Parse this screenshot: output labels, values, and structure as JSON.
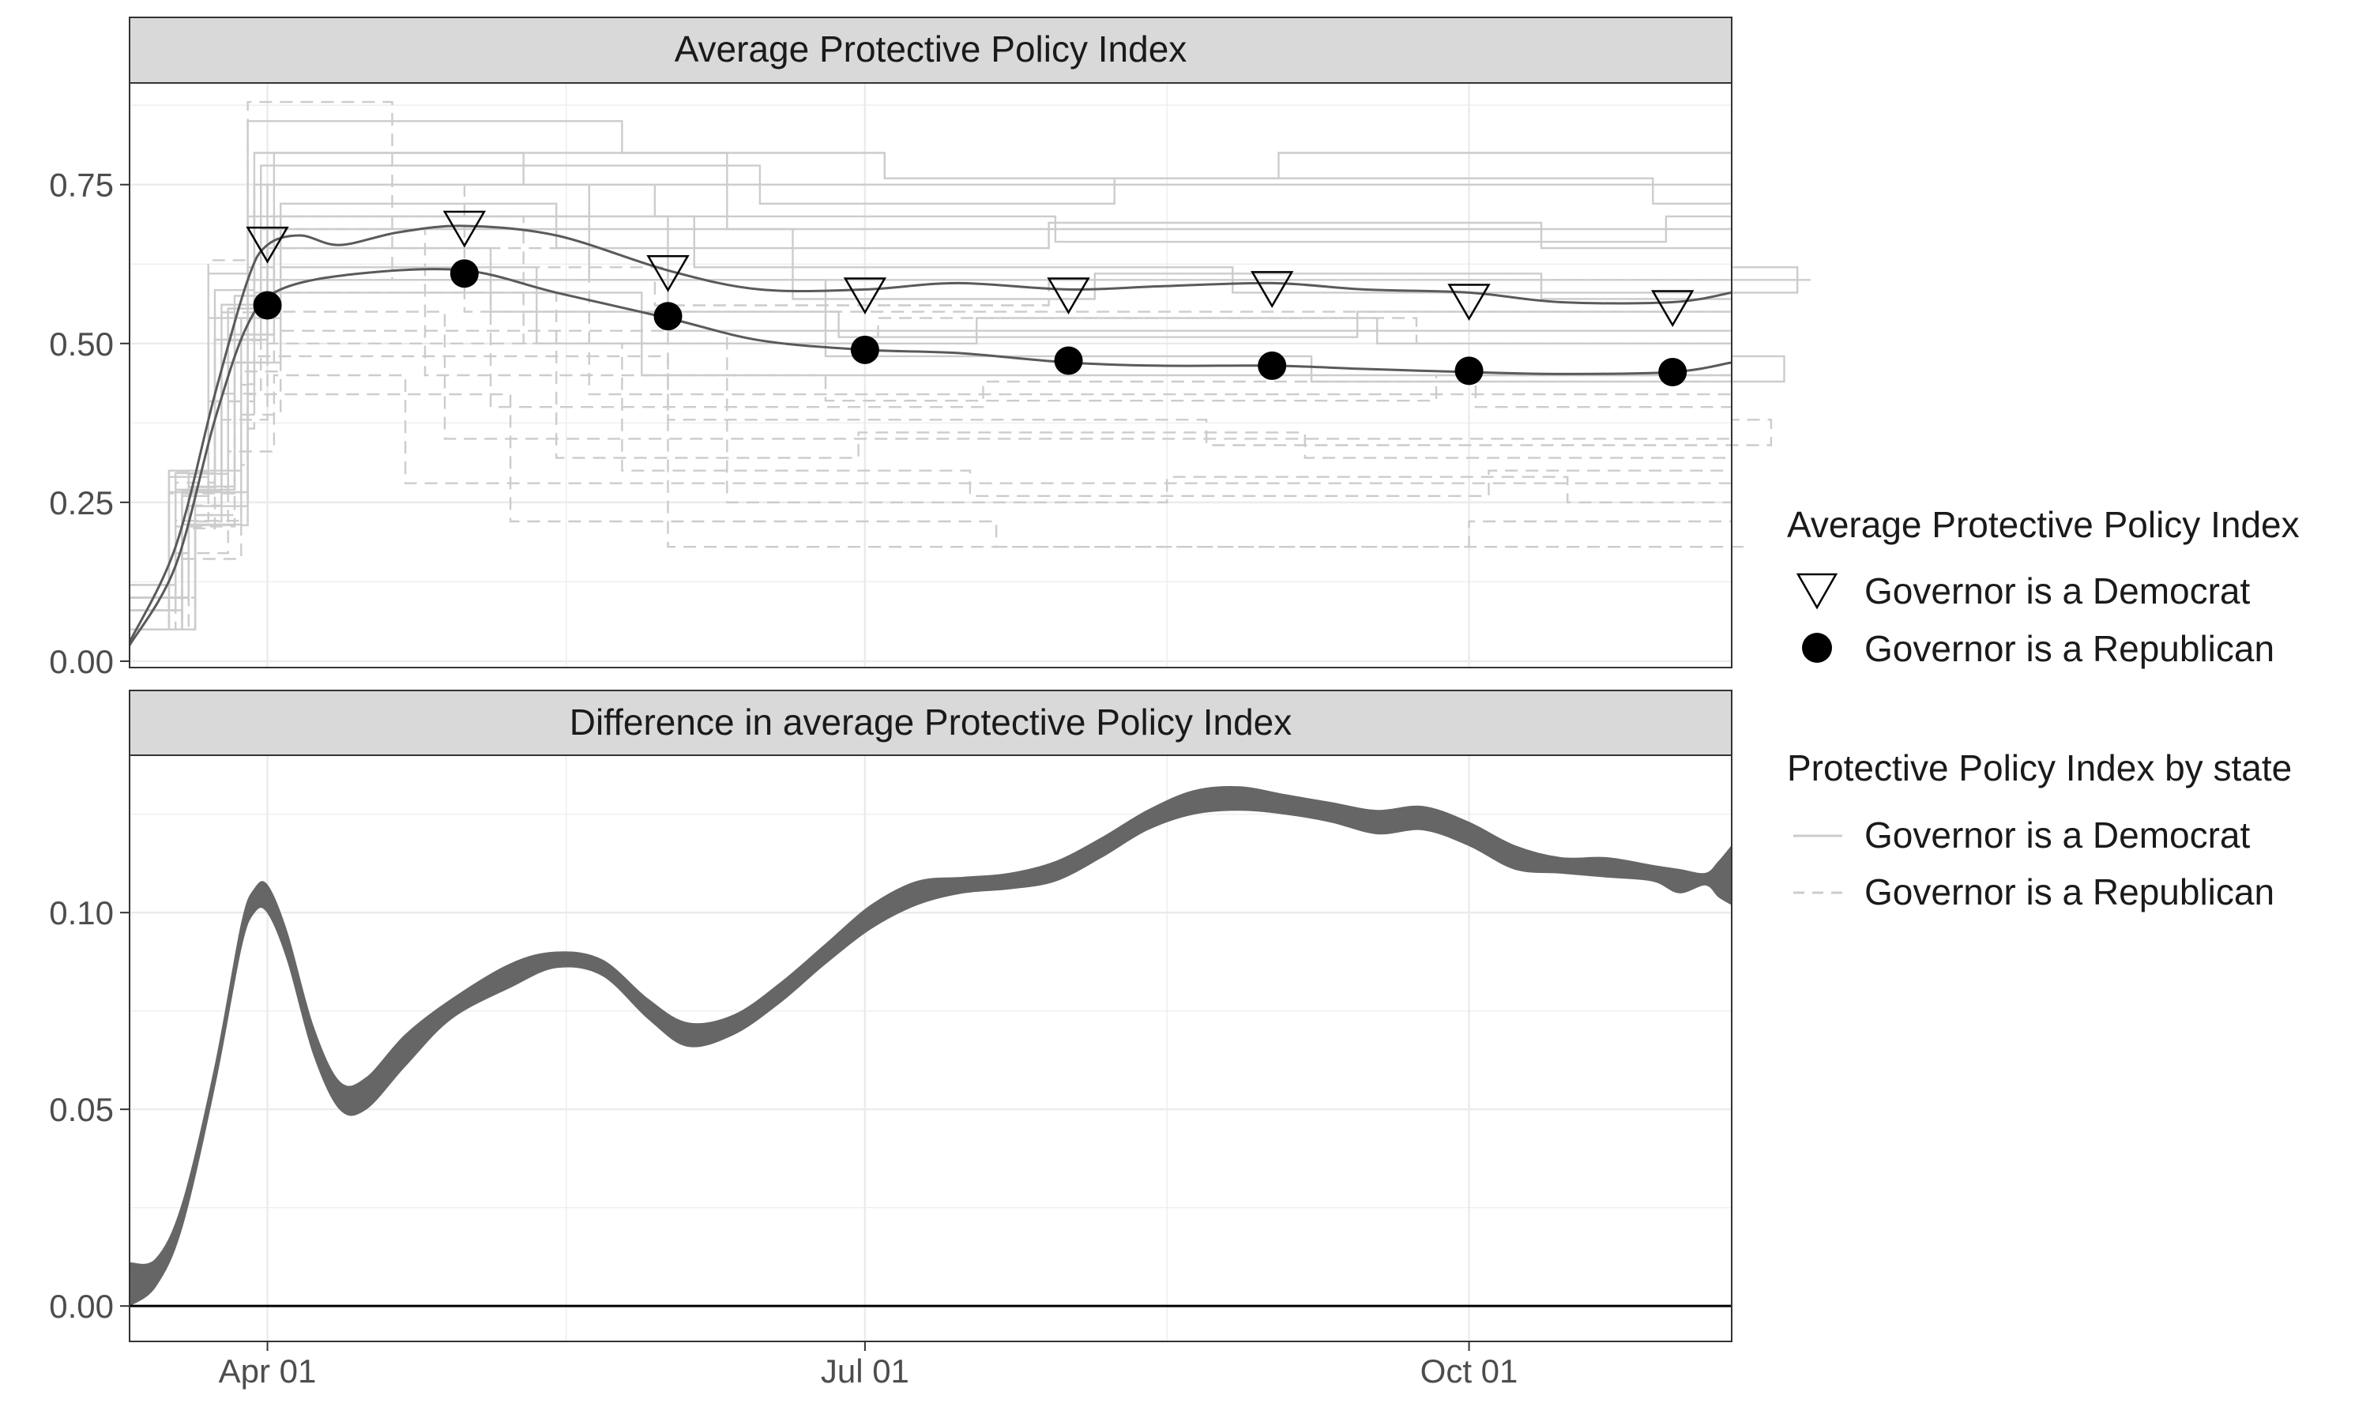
{
  "colors": {
    "strip_fill": "#d9d9d9",
    "panel_border": "#333333",
    "grid_major": "#ebebeb",
    "state_line": "#cccccc",
    "avg_line": "#5a5a5a",
    "ribbon": "#666666",
    "text": "#1a1a1a",
    "axis_text": "#4d4d4d"
  },
  "legend": {
    "avg_title": "Average Protective Policy Index",
    "avg_items": [
      {
        "label": "Governor is a Democrat",
        "shape": "open-down-triangle-icon"
      },
      {
        "label": "Governor is a Republican",
        "shape": "filled-circle-icon"
      }
    ],
    "state_title": "Protective Policy Index by state",
    "state_items": [
      {
        "label": "Governor is a Democrat",
        "linetype": "solid"
      },
      {
        "label": "Governor is a Republican",
        "linetype": "dashed"
      }
    ]
  },
  "chart_data": [
    {
      "type": "line",
      "title": "Average Protective Policy Index",
      "x_axis": {
        "type": "date",
        "range": [
          "2020-03-11",
          "2020-11-10"
        ],
        "tick_labels": [
          "Apr 01",
          "Jul 01",
          "Oct 01"
        ],
        "tick_dates": [
          "2020-04-01",
          "2020-07-01",
          "2020-10-01"
        ]
      },
      "y_axis": {
        "range": [
          -0.01,
          0.91
        ],
        "ticks": [
          0.0,
          0.25,
          0.5,
          0.75
        ],
        "tick_labels": [
          "0.00",
          "0.25",
          "0.50",
          "0.75"
        ]
      },
      "grid": true,
      "legend_position": "right",
      "series": [
        {
          "name": "Governor is a Democrat",
          "marker": "open-triangle-down",
          "smooth": [
            [
              "2020-03-11",
              0.03
            ],
            [
              "2020-03-18",
              0.18
            ],
            [
              "2020-03-24",
              0.42
            ],
            [
              "2020-03-29",
              0.6
            ],
            [
              "2020-04-01",
              0.655
            ],
            [
              "2020-04-06",
              0.67
            ],
            [
              "2020-04-12",
              0.655
            ],
            [
              "2020-04-21",
              0.675
            ],
            [
              "2020-05-01",
              0.685
            ],
            [
              "2020-05-15",
              0.67
            ],
            [
              "2020-06-01",
              0.615
            ],
            [
              "2020-06-15",
              0.585
            ],
            [
              "2020-07-01",
              0.585
            ],
            [
              "2020-07-15",
              0.595
            ],
            [
              "2020-08-01",
              0.585
            ],
            [
              "2020-08-15",
              0.59
            ],
            [
              "2020-09-01",
              0.595
            ],
            [
              "2020-09-15",
              0.585
            ],
            [
              "2020-10-01",
              0.58
            ],
            [
              "2020-10-15",
              0.565
            ],
            [
              "2020-11-01",
              0.565
            ],
            [
              "2020-11-10",
              0.58
            ]
          ],
          "points": [
            [
              "2020-04-01",
              0.655
            ],
            [
              "2020-05-01",
              0.68
            ],
            [
              "2020-06-01",
              0.61
            ],
            [
              "2020-07-01",
              0.575
            ],
            [
              "2020-08-01",
              0.575
            ],
            [
              "2020-09-01",
              0.585
            ],
            [
              "2020-10-01",
              0.565
            ],
            [
              "2020-11-01",
              0.555
            ]
          ]
        },
        {
          "name": "Governor is a Republican",
          "marker": "filled-circle",
          "smooth": [
            [
              "2020-03-11",
              0.025
            ],
            [
              "2020-03-18",
              0.15
            ],
            [
              "2020-03-24",
              0.38
            ],
            [
              "2020-03-29",
              0.53
            ],
            [
              "2020-04-03",
              0.585
            ],
            [
              "2020-04-15",
              0.61
            ],
            [
              "2020-05-01",
              0.615
            ],
            [
              "2020-05-15",
              0.58
            ],
            [
              "2020-06-01",
              0.54
            ],
            [
              "2020-06-15",
              0.505
            ],
            [
              "2020-07-01",
              0.49
            ],
            [
              "2020-07-15",
              0.485
            ],
            [
              "2020-08-01",
              0.47
            ],
            [
              "2020-08-15",
              0.465
            ],
            [
              "2020-09-01",
              0.465
            ],
            [
              "2020-09-15",
              0.46
            ],
            [
              "2020-10-01",
              0.455
            ],
            [
              "2020-10-15",
              0.452
            ],
            [
              "2020-11-01",
              0.455
            ],
            [
              "2020-11-10",
              0.47
            ]
          ],
          "points": [
            [
              "2020-04-01",
              0.56
            ],
            [
              "2020-05-01",
              0.61
            ],
            [
              "2020-06-01",
              0.543
            ],
            [
              "2020-07-01",
              0.49
            ],
            [
              "2020-08-01",
              0.473
            ],
            [
              "2020-09-01",
              0.465
            ],
            [
              "2020-10-01",
              0.457
            ],
            [
              "2020-11-01",
              0.455
            ]
          ]
        }
      ],
      "state_series": {
        "Governor is a Democrat": [
          {
            "level": 0.8,
            "start": 0.05,
            "peak": 0.85,
            "peak_until": "2020-05-25"
          },
          {
            "level": 0.75,
            "start": 0.08,
            "peak": 0.8,
            "peak_until": "2020-05-10"
          },
          {
            "level": 0.72,
            "start": 0.05,
            "peak": 0.78,
            "peak_until": "2020-06-15"
          },
          {
            "level": 0.7,
            "start": 0.1,
            "peak": 0.75,
            "peak_until": "2020-05-30"
          },
          {
            "level": 0.68,
            "start": 0.05,
            "peak": 0.8,
            "peak_until": "2020-06-10"
          },
          {
            "level": 0.65,
            "start": 0.12,
            "peak": 0.72,
            "peak_until": "2020-05-15"
          },
          {
            "level": 0.62,
            "start": 0.08,
            "peak": 0.7,
            "peak_until": "2020-06-05"
          },
          {
            "level": 0.6,
            "start": 0.05,
            "peak": 0.75,
            "peak_until": "2020-05-20"
          },
          {
            "level": 0.57,
            "start": 0.1,
            "peak": 0.68,
            "peak_until": "2020-06-20"
          },
          {
            "level": 0.55,
            "start": 0.05,
            "peak": 0.65,
            "peak_until": "2020-05-05"
          },
          {
            "level": 0.52,
            "start": 0.08,
            "peak": 0.7,
            "peak_until": "2020-06-01"
          },
          {
            "level": 0.5,
            "start": 0.12,
            "peak": 0.62,
            "peak_until": "2020-05-12"
          },
          {
            "level": 0.48,
            "start": 0.05,
            "peak": 0.6,
            "peak_until": "2020-06-25"
          },
          {
            "level": 0.45,
            "start": 0.1,
            "peak": 0.58,
            "peak_until": "2020-05-28"
          }
        ],
        "Governor is a Republican": [
          {
            "level": 0.6,
            "start": 0.05,
            "peak": 0.88,
            "peak_until": "2020-04-20"
          },
          {
            "level": 0.55,
            "start": 0.08,
            "peak": 0.75,
            "peak_until": "2020-05-01"
          },
          {
            "level": 0.5,
            "start": 0.05,
            "peak": 0.7,
            "peak_until": "2020-05-10"
          },
          {
            "level": 0.45,
            "start": 0.1,
            "peak": 0.68,
            "peak_until": "2020-04-25"
          },
          {
            "level": 0.42,
            "start": 0.05,
            "peak": 0.65,
            "peak_until": "2020-05-20"
          },
          {
            "level": 0.4,
            "start": 0.12,
            "peak": 0.6,
            "peak_until": "2020-05-05"
          },
          {
            "level": 0.38,
            "start": 0.05,
            "peak": 0.62,
            "peak_until": "2020-06-01"
          },
          {
            "level": 0.35,
            "start": 0.08,
            "peak": 0.55,
            "peak_until": "2020-04-28"
          },
          {
            "level": 0.32,
            "start": 0.05,
            "peak": 0.58,
            "peak_until": "2020-05-15"
          },
          {
            "level": 0.3,
            "start": 0.1,
            "peak": 0.5,
            "peak_until": "2020-05-25"
          },
          {
            "level": 0.28,
            "start": 0.05,
            "peak": 0.45,
            "peak_until": "2020-04-22"
          },
          {
            "level": 0.25,
            "start": 0.08,
            "peak": 0.52,
            "peak_until": "2020-06-10"
          },
          {
            "level": 0.22,
            "start": 0.05,
            "peak": 0.42,
            "peak_until": "2020-05-08"
          },
          {
            "level": 0.18,
            "start": 0.1,
            "peak": 0.48,
            "peak_until": "2020-06-01"
          }
        ]
      }
    },
    {
      "type": "area",
      "title": "Difference in average Protective Policy Index",
      "x_axis": {
        "type": "date",
        "range": [
          "2020-03-11",
          "2020-11-10"
        ],
        "tick_labels": [
          "Apr 01",
          "Jul 01",
          "Oct 01"
        ],
        "tick_dates": [
          "2020-04-01",
          "2020-07-01",
          "2020-10-01"
        ]
      },
      "y_axis": {
        "range": [
          -0.009,
          0.14
        ],
        "ticks": [
          0.0,
          0.05,
          0.1
        ],
        "tick_labels": [
          "0.00",
          "0.05",
          "0.10"
        ]
      },
      "grid": true,
      "hline": 0,
      "ribbon": [
        [
          "2020-03-11",
          0.0,
          0.011
        ],
        [
          "2020-03-15",
          0.005,
          0.012
        ],
        [
          "2020-03-19",
          0.02,
          0.026
        ],
        [
          "2020-03-24",
          0.056,
          0.061
        ],
        [
          "2020-03-28",
          0.091,
          0.097
        ],
        [
          "2020-03-30",
          0.1,
          0.106
        ],
        [
          "2020-04-01",
          0.1,
          0.107
        ],
        [
          "2020-04-04",
          0.088,
          0.095
        ],
        [
          "2020-04-08",
          0.064,
          0.071
        ],
        [
          "2020-04-12",
          0.05,
          0.057
        ],
        [
          "2020-04-16",
          0.05,
          0.058
        ],
        [
          "2020-04-22",
          0.061,
          0.069
        ],
        [
          "2020-04-29",
          0.073,
          0.078
        ],
        [
          "2020-05-08",
          0.081,
          0.087
        ],
        [
          "2020-05-15",
          0.086,
          0.09
        ],
        [
          "2020-05-22",
          0.084,
          0.088
        ],
        [
          "2020-05-29",
          0.073,
          0.078
        ],
        [
          "2020-06-04",
          0.066,
          0.072
        ],
        [
          "2020-06-11",
          0.069,
          0.074
        ],
        [
          "2020-06-18",
          0.077,
          0.082
        ],
        [
          "2020-06-25",
          0.087,
          0.092
        ],
        [
          "2020-07-02",
          0.096,
          0.102
        ],
        [
          "2020-07-09",
          0.102,
          0.108
        ],
        [
          "2020-07-16",
          0.105,
          0.109
        ],
        [
          "2020-07-23",
          0.106,
          0.11
        ],
        [
          "2020-07-30",
          0.108,
          0.113
        ],
        [
          "2020-08-06",
          0.114,
          0.119
        ],
        [
          "2020-08-13",
          0.121,
          0.126
        ],
        [
          "2020-08-20",
          0.125,
          0.131
        ],
        [
          "2020-08-27",
          0.126,
          0.132
        ],
        [
          "2020-09-03",
          0.125,
          0.13
        ],
        [
          "2020-09-10",
          0.123,
          0.128
        ],
        [
          "2020-09-17",
          0.12,
          0.126
        ],
        [
          "2020-09-24",
          0.121,
          0.127
        ],
        [
          "2020-10-01",
          0.117,
          0.123
        ],
        [
          "2020-10-08",
          0.111,
          0.117
        ],
        [
          "2020-10-15",
          0.11,
          0.114
        ],
        [
          "2020-10-22",
          0.109,
          0.114
        ],
        [
          "2020-10-29",
          0.108,
          0.112
        ],
        [
          "2020-11-02",
          0.105,
          0.111
        ],
        [
          "2020-11-06",
          0.107,
          0.11
        ],
        [
          "2020-11-08",
          0.104,
          0.113
        ],
        [
          "2020-11-10",
          0.102,
          0.117
        ]
      ]
    }
  ]
}
